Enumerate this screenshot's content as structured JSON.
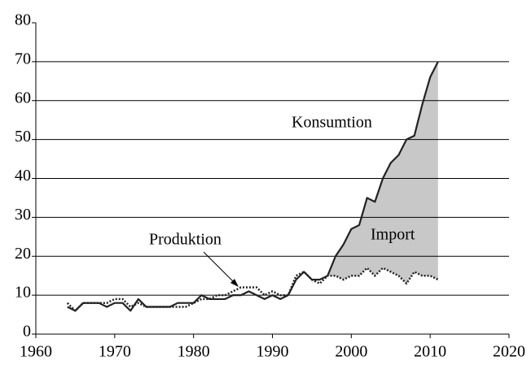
{
  "chart_data": {
    "type": "line",
    "x": [
      1964,
      1965,
      1966,
      1967,
      1968,
      1969,
      1970,
      1971,
      1972,
      1973,
      1974,
      1975,
      1976,
      1977,
      1978,
      1979,
      1980,
      1981,
      1982,
      1983,
      1984,
      1985,
      1986,
      1987,
      1988,
      1989,
      1990,
      1991,
      1992,
      1993,
      1994,
      1995,
      1996,
      1997,
      1998,
      1999,
      2000,
      2001,
      2002,
      2003,
      2004,
      2005,
      2006,
      2007,
      2008,
      2009,
      2010,
      2011
    ],
    "series": [
      {
        "name": "Konsumtion",
        "color": "#222222",
        "style": "solid",
        "values": [
          7,
          6,
          8,
          8,
          8,
          7,
          8,
          8,
          6,
          9,
          7,
          7,
          7,
          7,
          8,
          8,
          8,
          10,
          9,
          9,
          9,
          10,
          10,
          11,
          10,
          9,
          10,
          9,
          10,
          14,
          16,
          14,
          14,
          15,
          20,
          23,
          27,
          28,
          35,
          34,
          40,
          44,
          46,
          50,
          51,
          59,
          66,
          70
        ]
      },
      {
        "name": "Produktion",
        "color": "#222222",
        "style": "dotted",
        "values": [
          8,
          6,
          8,
          8,
          8,
          8,
          9,
          9,
          7,
          8,
          7,
          7,
          7,
          7,
          7,
          7,
          8,
          9,
          9,
          10,
          10,
          11,
          12,
          12,
          12,
          10,
          11,
          10,
          10,
          15,
          16,
          14,
          13,
          15,
          15,
          14,
          15,
          15,
          17,
          15,
          17,
          16,
          15,
          13,
          16,
          15,
          15,
          14
        ]
      }
    ],
    "fill_label": "Import",
    "fill_color": "#c8c8c8",
    "xlim": [
      1960,
      2020
    ],
    "xticks": [
      1960,
      1970,
      1980,
      1990,
      2000,
      2010,
      2020
    ],
    "ylim": [
      0,
      80
    ],
    "yticks": [
      0,
      10,
      20,
      30,
      40,
      50,
      60,
      70,
      80
    ],
    "grid": true
  }
}
